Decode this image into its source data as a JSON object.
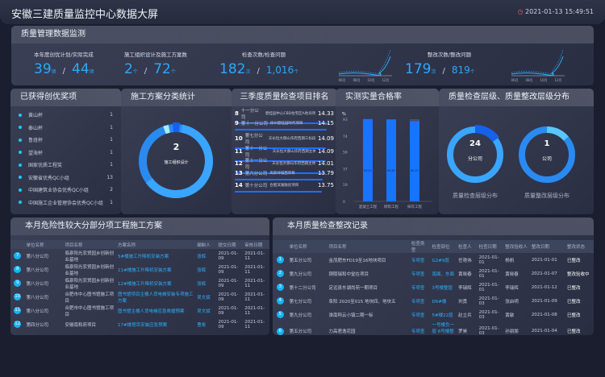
{
  "header": {
    "title": "安徽三建质量监控中心数据大屏",
    "datetime": "2021-01-13 15:49:51",
    "clock_icon": "clock-icon"
  },
  "monitor": {
    "title": "质量管理数据监测",
    "kpis": [
      {
        "label": "本年度创优计划/实际完成",
        "a": "39",
        "a_unit": "项",
        "b": "44",
        "b_unit": "项"
      },
      {
        "label": "施工组织设计及施工方案数",
        "a": "2",
        "a_unit": "个",
        "b": "72",
        "b_unit": "个"
      },
      {
        "label": "检查次数/检查问题",
        "a": "182",
        "a_unit": "次",
        "b": "1,016",
        "b_unit": "个"
      },
      {
        "label": "整改次数/整改问题",
        "a": "179",
        "a_unit": "次",
        "b": "819",
        "b_unit": "个"
      }
    ],
    "spark_months": [
      "06月",
      "08月",
      "10月",
      "12月"
    ]
  },
  "awards": {
    "title": "已获得创优奖项",
    "items": [
      {
        "name": "黄山杯",
        "count": "1"
      },
      {
        "name": "泰山杯",
        "count": "1"
      },
      {
        "name": "鲁班杯",
        "count": "1"
      },
      {
        "name": "望海杯",
        "count": "1"
      },
      {
        "name": "国家优质工程奖",
        "count": "1"
      },
      {
        "name": "安徽省优秀QC小组",
        "count": "13"
      },
      {
        "name": "中国建筑业协会优秀QC小组",
        "count": "2"
      },
      {
        "name": "中国施工企业管理协会优秀QC小组",
        "count": "1"
      }
    ]
  },
  "plan_stats": {
    "title": "施工方案分类统计",
    "center_value": "2",
    "center_label": "施工组织设计"
  },
  "ranking": {
    "title": "三季度质量检查项目排名",
    "items": [
      {
        "no": "8",
        "company": "十一分公司",
        "project": "碧桂园中心CBD住宅区A地块项目",
        "score": "14.33",
        "pct": 95
      },
      {
        "no": "9",
        "company": "第十一分公司",
        "project": "徐州碧桂园时代项目",
        "score": "14.15",
        "pct": 93
      },
      {
        "no": "10",
        "company": "第七分公司",
        "project": "天长恒大御山华府西期三标段II",
        "score": "14.09",
        "pct": 92
      },
      {
        "no": "11",
        "company": "第十一分公司",
        "project": "天长恒大御山华府西期主体II",
        "score": "14.09",
        "pct": 92
      },
      {
        "no": "12",
        "company": "第十一分公司",
        "project": "天长恒大御山华府西期主体III",
        "score": "14.01",
        "pct": 91
      },
      {
        "no": "13",
        "company": "第六分公司",
        "project": "高新绿城西项目",
        "score": "13.79",
        "pct": 89
      },
      {
        "no": "14",
        "company": "第十分公司",
        "project": "合肥滨湖融创项目",
        "score": "13.75",
        "pct": 88
      }
    ]
  },
  "pass_rate": {
    "title": "实测实量合格率"
  },
  "chart_data": {
    "type": "bar",
    "ylabel": "%",
    "ylim": [
      0,
      93
    ],
    "yticks": [
      0,
      19,
      37,
      56,
      74,
      93
    ],
    "categories": [
      "混凝土工程",
      "砌筑工程",
      "抹灰工程"
    ],
    "values": [
      93.21,
      92.67,
      90.71
    ]
  },
  "levels": {
    "title": "质量检查层级、质量整改层级分布",
    "left": {
      "value": "24",
      "label": "分公司",
      "caption": "质量检查层级分布"
    },
    "right": {
      "value": "1",
      "label": "公司",
      "caption": "质量整改层级分布"
    }
  },
  "plans_table": {
    "title": "本月危险性较大分部分项工程施工方案",
    "headers": [
      "单位名称",
      "项目名称",
      "方案名称",
      "编制人",
      "提交日期",
      "审核日期"
    ],
    "rows": [
      [
        "7",
        "第八分公司",
        "临泉阳光农贸园乡创新创业基地",
        "5#楼施工升降机安装方案",
        "张辉",
        "2021-01-09",
        "2021-01-11"
      ],
      [
        "8",
        "第八分公司",
        "临泉阳光农贸园乡创新创业基地",
        "11#楼施工升降机安装方案",
        "张辉",
        "2021-01-09",
        "2021-01-11"
      ],
      [
        "9",
        "第八分公司",
        "临泉阳光农贸园乡创新创业基地",
        "12#楼施工升降机安装方案",
        "张辉",
        "2021-01-09",
        "2021-01-11"
      ],
      [
        "10",
        "第八分公司",
        "合肥市中心图书馆施工项目",
        "图书馆项目主楼人货电梯安装专项施工方案",
        "吴文斌",
        "2021-01-09",
        "2021-01-11"
      ],
      [
        "11",
        "第八分公司",
        "合肥市中心图书馆施工项目",
        "图书馆主楼人货电梯应急救援预案",
        "吴文斌",
        "2021-01-09",
        "2021-01-11"
      ],
      [
        "12",
        "第四分公司",
        "安徽南和府项目",
        "17#楼塔吊安装应急预案",
        "曹俊",
        "2021-01-09",
        "2021-01-11"
      ]
    ]
  },
  "rectify_table": {
    "title": "本月质量检查整改记录",
    "headers": [
      "单位名称",
      "项目名称",
      "检查类型",
      "检查部位",
      "检查人",
      "检查日期",
      "整改验收人",
      "整改日期",
      "整改状态"
    ],
    "rows": [
      [
        "1",
        "第五分公司",
        "金茂肥东FD19至16地块项目",
        "专项查",
        "G2#9层",
        "任艳伟",
        "2021-01-01",
        "杨帆",
        "2021-01-01",
        "已整改"
      ],
      [
        "2",
        "第九分公司",
        "铜陵瑞和中堂在项目",
        "专项查",
        "南面、东面",
        "黄晓春",
        "2021-01-01",
        "黄晓春",
        "2021-01-07",
        "整改验收中"
      ],
      [
        "3",
        "第十二分公司",
        "定远县东湖尚苑一期项目",
        "专项查",
        "3号楼整层",
        "李瑞辉",
        "2021-01-01",
        "李瑞辉",
        "2021-01-12",
        "已整改"
      ],
      [
        "4",
        "第七分公司",
        "阜阳 2020至015 地块四、地块五",
        "专项查",
        "D6#楼",
        "刘勇",
        "2021-01-03",
        "张启明",
        "2021-01-09",
        "已整改"
      ],
      [
        "5",
        "第九分公司",
        "淮南阿云小镇二期一标",
        "专项查",
        "5#楼22层",
        "赵立兵",
        "2021-01-03",
        "黄敏",
        "2021-01-08",
        "已整改"
      ],
      [
        "6",
        "第五分公司",
        "力高君逸花园",
        "专项查",
        "一号楼负一层 6号楼整层",
        "罗昊",
        "2021-01-03",
        "孙朋朋",
        "2021-01-04",
        "已整改"
      ]
    ]
  },
  "colors": {
    "accent": "#29a9ff",
    "bar": "#1e6fff",
    "badge": "#16b4f5"
  }
}
